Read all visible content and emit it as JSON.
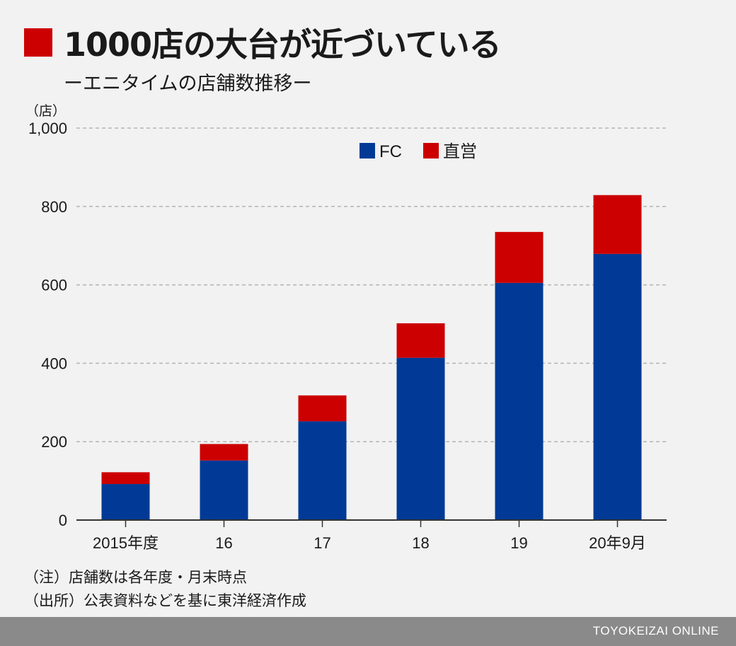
{
  "title": "1000店の大台が近づいている",
  "subtitle": "ーエニタイムの店舗数推移ー",
  "unit_label": "（店）",
  "notes": [
    "（注）店舗数は各年度・月末時点",
    "（出所）公表資料などを基に東洋経済作成"
  ],
  "brand": "TOYOKEIZAI ONLINE",
  "colors": {
    "accent": "#cc0000",
    "fc": "#003a96",
    "direct": "#cc0000",
    "grid": "#b4b4b4",
    "footer": "#8a8a8a"
  },
  "chart_data": {
    "type": "bar",
    "stacked": true,
    "categories": [
      "2015年度",
      "16",
      "17",
      "18",
      "19",
      "20年9月"
    ],
    "series": [
      {
        "name": "FC",
        "values": [
          92,
          152,
          252,
          414,
          605,
          679
        ]
      },
      {
        "name": "直営",
        "values": [
          30,
          42,
          66,
          88,
          130,
          150
        ]
      }
    ],
    "ylim": [
      0,
      1000
    ],
    "yticks": [
      0,
      200,
      400,
      600,
      800,
      1000
    ],
    "ytick_labels": [
      "0",
      "200",
      "400",
      "600",
      "800",
      "1,000"
    ],
    "grid": true,
    "legend_position": "top-center"
  }
}
